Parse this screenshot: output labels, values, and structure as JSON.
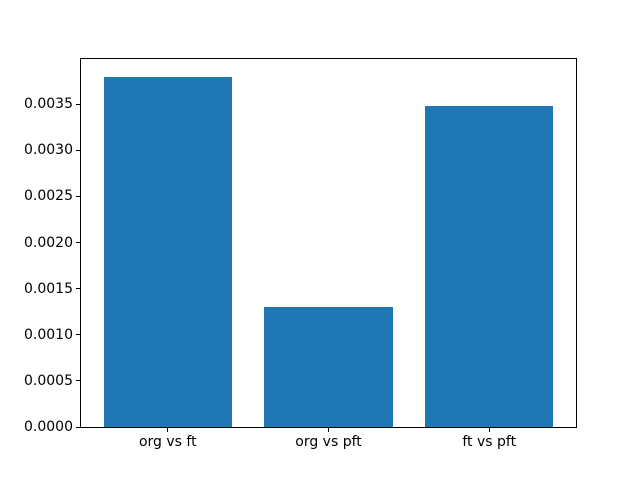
{
  "chart_data": {
    "type": "bar",
    "title": "",
    "xlabel": "",
    "ylabel": "",
    "categories": [
      "org vs ft",
      "org vs pft",
      "ft vs pft"
    ],
    "values": [
      0.0038,
      0.0013,
      0.00348
    ],
    "bar_color": "#1f77b4",
    "spine_color": "#000000",
    "background_color": "#ffffff",
    "ylim": [
      0,
      0.00399
    ],
    "yticks": [
      "0.0000",
      "0.0005",
      "0.0010",
      "0.0015",
      "0.0020",
      "0.0025",
      "0.0030",
      "0.0035"
    ],
    "grid": false,
    "legend": "none",
    "bar_width_fraction": 0.8
  }
}
